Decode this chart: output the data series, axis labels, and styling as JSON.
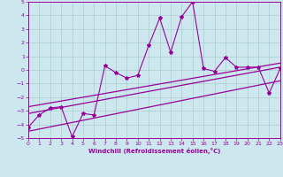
{
  "xlabel": "Windchill (Refroidissement éolien,°C)",
  "bg_color": "#cce8ee",
  "line_color": "#990099",
  "grid_color": "#aacccc",
  "ylim": [
    -5,
    5
  ],
  "xlim": [
    0,
    23
  ],
  "yticks": [
    -5,
    -4,
    -3,
    -2,
    -1,
    0,
    1,
    2,
    3,
    4,
    5
  ],
  "xticks": [
    0,
    1,
    2,
    3,
    4,
    5,
    6,
    7,
    8,
    9,
    10,
    11,
    12,
    13,
    14,
    15,
    16,
    17,
    18,
    19,
    20,
    21,
    22,
    23
  ],
  "scatter_x": [
    0,
    1,
    2,
    3,
    4,
    5,
    6,
    7,
    8,
    9,
    10,
    11,
    12,
    13,
    14,
    15,
    16,
    17,
    18,
    19,
    20,
    21,
    22,
    23
  ],
  "scatter_y": [
    -4.2,
    -3.3,
    -2.8,
    -2.7,
    -4.9,
    -3.2,
    -3.3,
    0.3,
    -0.2,
    -0.6,
    -0.4,
    1.8,
    3.8,
    1.3,
    3.9,
    5.0,
    0.1,
    -0.1,
    0.9,
    0.2,
    0.2,
    0.2,
    -1.7,
    0.1
  ],
  "line1_x": [
    0,
    23
  ],
  "line1_y": [
    -3.2,
    0.2
  ],
  "line2_x": [
    0,
    23
  ],
  "line2_y": [
    -2.7,
    0.5
  ],
  "line3_x": [
    0,
    23
  ],
  "line3_y": [
    -4.5,
    -0.8
  ]
}
